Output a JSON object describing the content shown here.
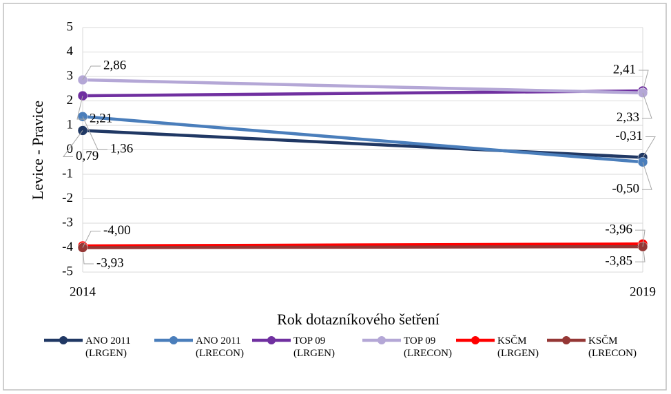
{
  "chart_data": {
    "type": "line",
    "categories": [
      "2014",
      "2019"
    ],
    "x_label": "Rok dotazníkového šetření",
    "y_label": "Levice - Pravice",
    "ylim": [
      -5,
      5
    ],
    "yticks": [
      -5,
      -4,
      -3,
      -2,
      -1,
      0,
      1,
      2,
      3,
      4,
      5
    ],
    "grid": true,
    "series": [
      {
        "name": "ANO 2011\n(LRGEN)",
        "color": "#203864",
        "values": [
          0.79,
          -0.31
        ],
        "value_labels": [
          "0,79",
          "-0,31"
        ]
      },
      {
        "name": "ANO 2011\n(LRECON)",
        "color": "#4a7ebb",
        "values": [
          1.36,
          -0.5
        ],
        "value_labels": [
          "1,36",
          "-0,50"
        ]
      },
      {
        "name": "TOP 09\n(LRGEN)",
        "color": "#7030a0",
        "values": [
          2.21,
          2.41
        ],
        "value_labels": [
          "2,21",
          "2,41"
        ]
      },
      {
        "name": "TOP 09\n(LRECON)",
        "color": "#b4a7d6",
        "values": [
          2.86,
          2.33
        ],
        "value_labels": [
          "2,86",
          "2,33"
        ]
      },
      {
        "name": "KSČM\n(LRGEN)",
        "color": "#ff0000",
        "values": [
          -3.93,
          -3.85
        ],
        "value_labels": [
          "-3,93",
          "-3,85"
        ]
      },
      {
        "name": "KSČM\n(LRECON)",
        "color": "#953735",
        "values": [
          -4.0,
          -3.96
        ],
        "value_labels": [
          "-4,00",
          "-3,96"
        ]
      }
    ]
  }
}
